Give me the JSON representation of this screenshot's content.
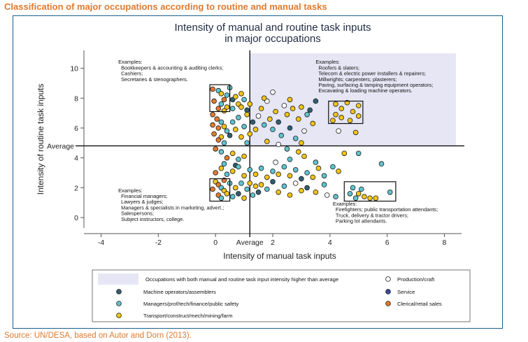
{
  "figure_title": "Classification of major occupations according to routine and manual tasks",
  "source": "Source: UN/DESA, based on Autor and Dorn (2013).",
  "chart_data": {
    "type": "scatter",
    "title_lines": [
      "Intensity of manual and routine task inputs",
      "in major occupations"
    ],
    "xlabel": "Intensity of manual task inputs",
    "ylabel": "Intensity of routine task inputs",
    "xlim": [
      -4.6,
      8.6
    ],
    "ylim": [
      -0.7,
      11.2
    ],
    "x_ticks": [
      -4,
      -2,
      0,
      2,
      4,
      6,
      8
    ],
    "y_ticks": [
      0,
      2,
      4,
      6,
      8,
      10
    ],
    "avg_x": 1.2,
    "avg_y": 4.8,
    "avg_x_label": "Average",
    "avg_y_label": "Average",
    "highlight_region": {
      "x": [
        1.2,
        8.4
      ],
      "y": [
        4.8,
        11
      ]
    },
    "annotations": [
      {
        "x": -3.4,
        "y": 10.3,
        "lines": [
          "Examples:",
          "Bookkeepers & accounting & auditing clerks;",
          "Cashiers;",
          "Secretaries & stenographers."
        ]
      },
      {
        "x": 3.5,
        "y": 10.3,
        "lines": [
          "Examples:",
          "Roofers & slaters;",
          "Telecom & electric power installers & repairers;",
          "Millwrights; carpenters; plasterers;",
          "Paving, surfacing & tamping equipment operators;",
          "Excavating & loading machine operators."
        ]
      },
      {
        "x": -3.4,
        "y": 1.7,
        "lines": [
          "Examples:",
          "Financial managers;",
          "Lawyers & judges;",
          "Managers & specialists in marketing, advert.;",
          "Salespersons;",
          "Subject instructors, college."
        ]
      },
      {
        "x": 4.1,
        "y": 0.8,
        "lines": [
          "Examples:",
          "Firefighters; public transportation attendants;",
          "Truck, delivery & tractor drivers;",
          "Parking lot attendants."
        ]
      }
    ],
    "boxes": [
      {
        "x": [
          -0.2,
          0.5
        ],
        "y": [
          7.1,
          8.9
        ]
      },
      {
        "x": 3.95,
        "x2": 5.15,
        "y": [
          6.3,
          7.8
        ]
      },
      {
        "x": [
          -0.2,
          0.5
        ],
        "y": [
          1.1,
          2.6
        ]
      },
      {
        "x": [
          4.5,
          6.3
        ],
        "y": [
          1.1,
          2.4
        ]
      }
    ],
    "series": [
      {
        "name": "Production/craft",
        "color": "#ffffff"
      },
      {
        "name": "Machine operators/assemblers",
        "color": "#2f5f72"
      },
      {
        "name": "Service",
        "color": "#3a4aa0"
      },
      {
        "name": "Managers/prof/tech/finance/public safety",
        "color": "#5fc4cf"
      },
      {
        "name": "Clerical/retail sales",
        "color": "#e07a2e"
      },
      {
        "name": "Transport/construct/mech/mining/farm",
        "color": "#f2c418"
      }
    ],
    "region_legend_label": "Occupations with both manual and routine task input intensity higher than average",
    "region_color": "#e6e6f5",
    "points": [
      [
        -0.1,
        8.6,
        4
      ],
      [
        0.1,
        8.5,
        3
      ],
      [
        0.2,
        8.3,
        5
      ],
      [
        0.4,
        8.2,
        3
      ],
      [
        0.3,
        7.9,
        4
      ],
      [
        -0.05,
        7.8,
        4
      ],
      [
        0.2,
        7.6,
        3
      ],
      [
        0.4,
        7.4,
        5
      ],
      [
        0.1,
        7.3,
        4
      ],
      [
        0.3,
        7.15,
        5
      ],
      [
        0.5,
        8.7,
        3
      ],
      [
        0.6,
        7.9,
        1
      ],
      [
        0.7,
        8.1,
        5
      ],
      [
        0.8,
        7.6,
        5
      ],
      [
        0.6,
        7.3,
        3
      ],
      [
        0.9,
        7.4,
        5
      ],
      [
        1.0,
        7.9,
        3
      ],
      [
        1.1,
        7.2,
        1
      ],
      [
        0.9,
        8.3,
        5
      ],
      [
        1.2,
        7.6,
        5
      ],
      [
        1.1,
        6.9,
        5
      ],
      [
        -0.1,
        6.9,
        4
      ],
      [
        0.05,
        6.6,
        4
      ],
      [
        0.2,
        6.4,
        3
      ],
      [
        -0.1,
        6.2,
        4
      ],
      [
        0.1,
        6.0,
        4
      ],
      [
        0.3,
        6.1,
        5
      ],
      [
        0.4,
        5.8,
        3
      ],
      [
        -0.05,
        5.6,
        4
      ],
      [
        0.2,
        5.4,
        5
      ],
      [
        0.1,
        5.2,
        4
      ],
      [
        0.3,
        5.0,
        3
      ],
      [
        0.5,
        5.5,
        1
      ],
      [
        0.6,
        6.4,
        3
      ],
      [
        0.7,
        5.9,
        5
      ],
      [
        0.8,
        6.7,
        3
      ],
      [
        0.9,
        5.4,
        5
      ],
      [
        1.0,
        6.1,
        3
      ],
      [
        1.2,
        5.6,
        5
      ],
      [
        1.3,
        6.4,
        1
      ],
      [
        1.1,
        5.0,
        3
      ],
      [
        1.4,
        5.9,
        5
      ],
      [
        0.0,
        4.6,
        4
      ],
      [
        0.2,
        4.4,
        3
      ],
      [
        0.4,
        4.0,
        4
      ],
      [
        0.6,
        4.3,
        5
      ],
      [
        0.8,
        3.9,
        3
      ],
      [
        1.0,
        4.1,
        5
      ],
      [
        0.3,
        3.6,
        3
      ],
      [
        0.7,
        3.5,
        1
      ],
      [
        1.5,
        6.8,
        0
      ],
      [
        1.6,
        7.3,
        5
      ],
      [
        1.7,
        6.2,
        3
      ],
      [
        1.8,
        7.8,
        0
      ],
      [
        1.9,
        6.6,
        5
      ],
      [
        2.0,
        5.9,
        3
      ],
      [
        2.1,
        7.1,
        5
      ],
      [
        2.2,
        6.4,
        1
      ],
      [
        2.3,
        5.5,
        3
      ],
      [
        2.4,
        7.5,
        0
      ],
      [
        2.5,
        6.9,
        5
      ],
      [
        2.6,
        6.0,
        1
      ],
      [
        2.7,
        7.3,
        5
      ],
      [
        2.8,
        5.3,
        3
      ],
      [
        2.9,
        6.6,
        5
      ],
      [
        3.0,
        7.4,
        5
      ],
      [
        3.1,
        5.8,
        0
      ],
      [
        3.2,
        6.9,
        3
      ],
      [
        3.3,
        7.2,
        1
      ],
      [
        3.5,
        7.8,
        1
      ],
      [
        1.8,
        5.1,
        5
      ],
      [
        2.2,
        4.9,
        0
      ],
      [
        2.5,
        4.6,
        3
      ],
      [
        3.0,
        5.0,
        5
      ],
      [
        1.7,
        8.0,
        5
      ],
      [
        2.0,
        8.4,
        0
      ],
      [
        2.6,
        7.9,
        5
      ],
      [
        3.4,
        6.3,
        5
      ],
      [
        4.2,
        7.6,
        5
      ],
      [
        4.4,
        7.3,
        5
      ],
      [
        4.6,
        7.7,
        5
      ],
      [
        4.8,
        7.1,
        5
      ],
      [
        4.4,
        6.7,
        5
      ],
      [
        4.7,
        6.5,
        5
      ],
      [
        5.0,
        7.5,
        5
      ],
      [
        5.0,
        6.8,
        5
      ],
      [
        4.2,
        6.9,
        5
      ],
      [
        4.1,
        6.5,
        5
      ],
      [
        4.3,
        5.8,
        0
      ],
      [
        4.9,
        5.7,
        5
      ],
      [
        4.5,
        4.3,
        5
      ],
      [
        5.0,
        4.3,
        3
      ],
      [
        5.8,
        3.6,
        3
      ],
      [
        0.0,
        2.4,
        5
      ],
      [
        0.1,
        2.2,
        4
      ],
      [
        0.2,
        2.0,
        3
      ],
      [
        0.3,
        1.8,
        5
      ],
      [
        0.1,
        1.5,
        4
      ],
      [
        0.2,
        1.3,
        3
      ],
      [
        0.4,
        1.6,
        5
      ],
      [
        0.5,
        2.3,
        3
      ],
      [
        -0.1,
        1.9,
        4
      ],
      [
        0.3,
        2.5,
        4
      ],
      [
        0.6,
        1.4,
        3
      ],
      [
        0.7,
        2.0,
        5
      ],
      [
        0.8,
        1.6,
        1
      ],
      [
        0.9,
        2.3,
        3
      ],
      [
        1.0,
        1.3,
        5
      ],
      [
        1.1,
        1.9,
        3
      ],
      [
        1.2,
        2.3,
        5
      ],
      [
        1.3,
        1.5,
        3
      ],
      [
        1.4,
        2.1,
        5
      ],
      [
        1.5,
        1.7,
        1
      ],
      [
        0.0,
        3.0,
        4
      ],
      [
        0.2,
        3.3,
        5
      ],
      [
        0.4,
        2.9,
        3
      ],
      [
        0.6,
        3.1,
        5
      ],
      [
        0.8,
        3.4,
        3
      ],
      [
        1.0,
        2.8,
        5
      ],
      [
        1.2,
        3.2,
        3
      ],
      [
        1.4,
        2.9,
        5
      ],
      [
        1.6,
        3.3,
        3
      ],
      [
        1.8,
        2.7,
        5
      ],
      [
        2.0,
        3.1,
        3
      ],
      [
        2.2,
        2.9,
        5
      ],
      [
        2.4,
        3.4,
        3
      ],
      [
        2.6,
        2.8,
        5
      ],
      [
        2.8,
        3.2,
        3
      ],
      [
        3.0,
        2.6,
        1
      ],
      [
        3.2,
        3.0,
        3
      ],
      [
        3.4,
        2.7,
        5
      ],
      [
        3.6,
        3.3,
        5
      ],
      [
        3.8,
        2.8,
        3
      ],
      [
        1.6,
        2.2,
        5
      ],
      [
        1.8,
        1.9,
        3
      ],
      [
        2.0,
        2.4,
        1
      ],
      [
        2.2,
        1.7,
        5
      ],
      [
        2.4,
        2.1,
        3
      ],
      [
        2.6,
        1.5,
        5
      ],
      [
        2.8,
        2.3,
        0
      ],
      [
        3.0,
        1.8,
        5
      ],
      [
        3.2,
        2.0,
        1
      ],
      [
        3.5,
        1.7,
        5
      ],
      [
        3.8,
        2.2,
        3
      ],
      [
        4.2,
        1.4,
        3
      ],
      [
        3.9,
        1.5,
        0
      ],
      [
        2.1,
        3.7,
        0
      ],
      [
        2.6,
        3.9,
        3
      ],
      [
        3.1,
        4.1,
        5
      ],
      [
        3.5,
        3.7,
        3
      ],
      [
        4.1,
        3.4,
        3
      ],
      [
        4.3,
        3.1,
        5
      ],
      [
        2.9,
        4.4,
        5
      ],
      [
        4.8,
        2.0,
        3
      ],
      [
        5.0,
        1.6,
        5
      ],
      [
        4.9,
        1.3,
        3
      ],
      [
        5.2,
        1.4,
        5
      ],
      [
        5.4,
        1.3,
        5
      ],
      [
        5.6,
        1.3,
        5
      ],
      [
        5.1,
        1.9,
        3
      ],
      [
        6.1,
        1.7,
        3
      ],
      [
        4.7,
        1.6,
        3
      ]
    ]
  }
}
